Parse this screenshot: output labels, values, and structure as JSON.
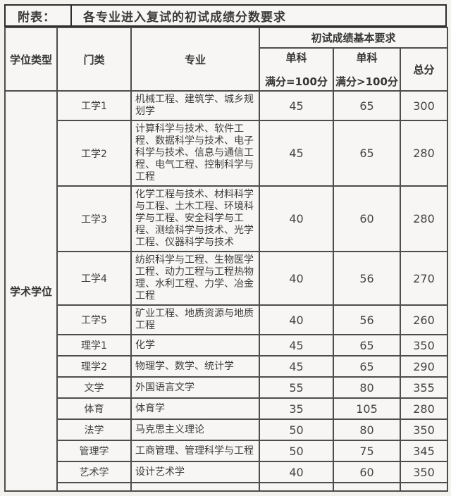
{
  "title": {
    "label": "附表：",
    "text": "各专业进入复试的初试成绩分数要求"
  },
  "header": {
    "degree_type": "学位类型",
    "category": "门类",
    "major": "专业",
    "requirements": "初试成绩基本要求",
    "single_full100_line1": "单科",
    "single_full100_line2": "满分=100分",
    "single_gt100_line1": "单科",
    "single_gt100_line2": "满分>100分",
    "total": "总分"
  },
  "degree_type_value": "学术学位",
  "rows": [
    {
      "category": "工学1",
      "major": "机械工程、建筑学、城乡规划学",
      "single_100": "45",
      "single_gt100": "65",
      "total": "300"
    },
    {
      "category": "工学2",
      "major": "计算科学与技术、软件工程、数据科学与技术、电子科学与技术、信息与通信工程、电气工程、控制科学与工程",
      "single_100": "45",
      "single_gt100": "65",
      "total": "280"
    },
    {
      "category": "工学3",
      "major": "化学工程与技术、材料科学与工程、土木工程、环境科学与工程、安全科学与工程、测绘科学与技术、光学工程、仪器科学与技术",
      "single_100": "40",
      "single_gt100": "60",
      "total": "280"
    },
    {
      "category": "工学4",
      "major": "纺织科学与工程、生物医学工程、动力工程与工程热物理、水利工程、力学、冶金工程",
      "single_100": "40",
      "single_gt100": "56",
      "total": "270"
    },
    {
      "category": "工学5",
      "major": "矿业工程、地质资源与地质工程",
      "single_100": "40",
      "single_gt100": "56",
      "total": "260"
    },
    {
      "category": "理学1",
      "major": "化学",
      "single_100": "45",
      "single_gt100": "65",
      "total": "350"
    },
    {
      "category": "理学2",
      "major": "物理学、数学、统计学",
      "single_100": "45",
      "single_gt100": "65",
      "total": "290"
    },
    {
      "category": "文学",
      "major": "外国语言文学",
      "single_100": "55",
      "single_gt100": "80",
      "total": "355"
    },
    {
      "category": "体育",
      "major": "体育学",
      "single_100": "35",
      "single_gt100": "105",
      "total": "280"
    },
    {
      "category": "法学",
      "major": "马克思主义理论",
      "single_100": "50",
      "single_gt100": "80",
      "total": "350"
    },
    {
      "category": "管理学",
      "major": "工商管理、管理科学与工程",
      "single_100": "50",
      "single_gt100": "75",
      "total": "345"
    },
    {
      "category": "艺术学",
      "major": "设计艺术学",
      "single_100": "40",
      "single_gt100": "60",
      "total": "350"
    }
  ]
}
